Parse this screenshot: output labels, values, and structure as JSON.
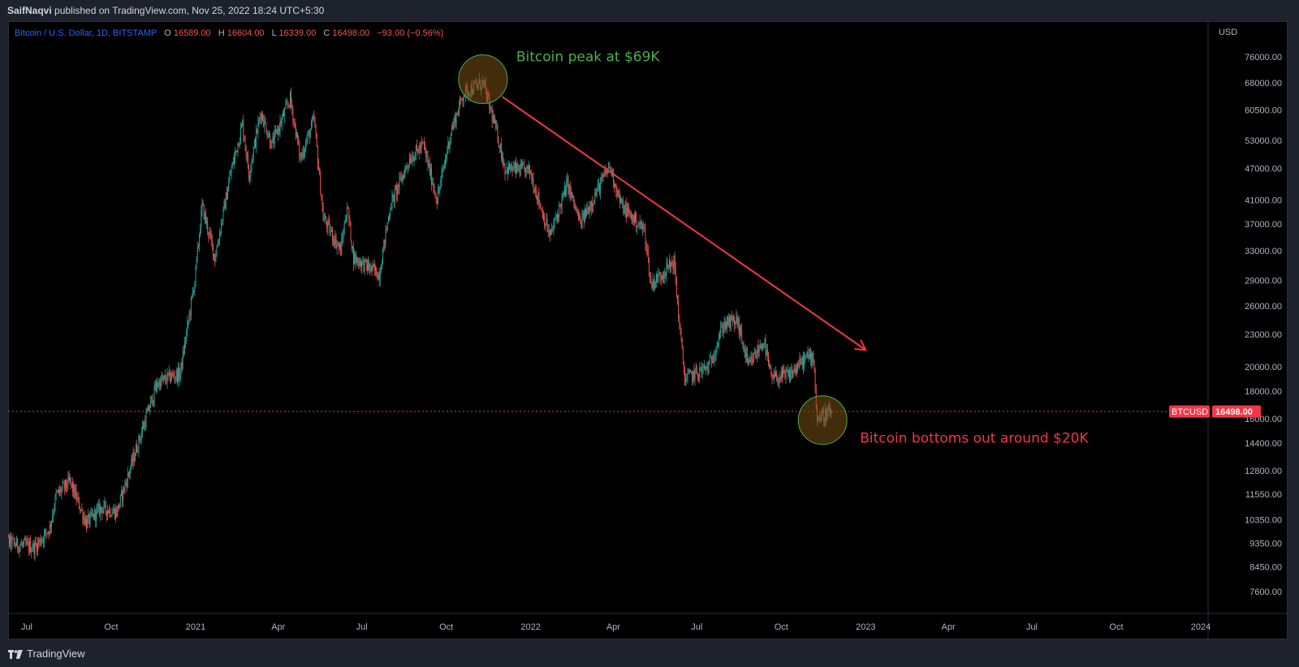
{
  "header": {
    "author": "SaifNaqvi",
    "published_text": "published on TradingView.com, Nov 25, 2022 18:24 UTC+5:30"
  },
  "footer": {
    "brand": "TradingView",
    "logo_icon": "tradingview-logo-icon"
  },
  "colors": {
    "background": "#000000",
    "up_candle": "#26a69a",
    "down_candle": "#ef5350",
    "legend_symbol": "#2962ff",
    "annotation_green": "#4caf50",
    "annotation_red": "#f23645",
    "price_line": "#f23645"
  },
  "chart_data": {
    "type": "candlestick",
    "symbol_title": "Bitcoin / U.S. Dollar, 1D, BITSTAMP",
    "ohlc_label": {
      "open_label": "O",
      "open": "16589.00",
      "high_label": "H",
      "high": "16604.00",
      "low_label": "L",
      "low": "16339.00",
      "close_label": "C",
      "close": "16498.00",
      "change": "−93.00 (−0.56%)"
    },
    "currency": "USD",
    "scale": "log",
    "y_ticks": [
      "76000.00",
      "68000.00",
      "60500.00",
      "53000.00",
      "47000.00",
      "41000.00",
      "37000.00",
      "33000.00",
      "29000.00",
      "26000.00",
      "23000.00",
      "20000.00",
      "18000.00",
      "16000.00",
      "14400.00",
      "12800.00",
      "11550.00",
      "10350.00",
      "9350.00",
      "8450.00",
      "7600.00"
    ],
    "y_tick_values": [
      76000,
      68000,
      60500,
      53000,
      47000,
      41000,
      37000,
      33000,
      29000,
      26000,
      23000,
      20000,
      18000,
      16000,
      14400,
      12800,
      11550,
      10350,
      9350,
      8450,
      7600
    ],
    "x_ticks": [
      "Jul",
      "Oct",
      "2021",
      "Apr",
      "Jul",
      "Oct",
      "2022",
      "Apr",
      "Jul",
      "Oct",
      "2023",
      "Apr",
      "Jul",
      "Oct",
      "2024"
    ],
    "x_tick_dates": [
      "2020-07-01",
      "2020-10-01",
      "2021-01-01",
      "2021-04-01",
      "2021-07-01",
      "2021-10-01",
      "2022-01-01",
      "2022-04-01",
      "2022-07-01",
      "2022-10-01",
      "2023-01-01",
      "2023-04-01",
      "2023-07-01",
      "2023-10-01",
      "2024-01-01"
    ],
    "x_range": [
      "2020-06-01",
      "2024-01-31"
    ],
    "last_price": {
      "symbol": "BTCUSD",
      "value": "16498.00",
      "price": 16498
    },
    "price_path": [
      {
        "date": "2020-06-01",
        "price": 9600
      },
      {
        "date": "2020-06-20",
        "price": 9300
      },
      {
        "date": "2020-07-10",
        "price": 9200
      },
      {
        "date": "2020-07-26",
        "price": 10000
      },
      {
        "date": "2020-08-02",
        "price": 11500
      },
      {
        "date": "2020-08-17",
        "price": 12200
      },
      {
        "date": "2020-09-04",
        "price": 10200
      },
      {
        "date": "2020-09-20",
        "price": 10900
      },
      {
        "date": "2020-10-07",
        "price": 10700
      },
      {
        "date": "2020-10-21",
        "price": 12800
      },
      {
        "date": "2020-11-05",
        "price": 15500
      },
      {
        "date": "2020-11-20",
        "price": 18600
      },
      {
        "date": "2020-12-05",
        "price": 19200
      },
      {
        "date": "2020-12-15",
        "price": 19400
      },
      {
        "date": "2020-12-31",
        "price": 29000
      },
      {
        "date": "2021-01-08",
        "price": 40000
      },
      {
        "date": "2021-01-22",
        "price": 32000
      },
      {
        "date": "2021-02-08",
        "price": 46000
      },
      {
        "date": "2021-02-21",
        "price": 57000
      },
      {
        "date": "2021-02-28",
        "price": 46000
      },
      {
        "date": "2021-03-13",
        "price": 60000
      },
      {
        "date": "2021-03-25",
        "price": 52000
      },
      {
        "date": "2021-04-14",
        "price": 63500
      },
      {
        "date": "2021-04-25",
        "price": 49000
      },
      {
        "date": "2021-05-10",
        "price": 58000
      },
      {
        "date": "2021-05-20",
        "price": 38000
      },
      {
        "date": "2021-06-08",
        "price": 33000
      },
      {
        "date": "2021-06-15",
        "price": 40000
      },
      {
        "date": "2021-06-22",
        "price": 32000
      },
      {
        "date": "2021-07-20",
        "price": 29800
      },
      {
        "date": "2021-08-01",
        "price": 40000
      },
      {
        "date": "2021-08-22",
        "price": 49000
      },
      {
        "date": "2021-09-06",
        "price": 52000
      },
      {
        "date": "2021-09-21",
        "price": 41000
      },
      {
        "date": "2021-10-06",
        "price": 55000
      },
      {
        "date": "2021-10-20",
        "price": 65000
      },
      {
        "date": "2021-11-10",
        "price": 68000
      },
      {
        "date": "2021-11-26",
        "price": 54000
      },
      {
        "date": "2021-12-04",
        "price": 47000
      },
      {
        "date": "2021-12-31",
        "price": 46500
      },
      {
        "date": "2022-01-22",
        "price": 35000
      },
      {
        "date": "2022-02-10",
        "price": 44000
      },
      {
        "date": "2022-02-24",
        "price": 37000
      },
      {
        "date": "2022-03-28",
        "price": 47500
      },
      {
        "date": "2022-04-10",
        "price": 40000
      },
      {
        "date": "2022-05-05",
        "price": 36000
      },
      {
        "date": "2022-05-12",
        "price": 28500
      },
      {
        "date": "2022-06-06",
        "price": 31500
      },
      {
        "date": "2022-06-14",
        "price": 22000
      },
      {
        "date": "2022-06-18",
        "price": 19000
      },
      {
        "date": "2022-07-14",
        "price": 20000
      },
      {
        "date": "2022-07-30",
        "price": 24000
      },
      {
        "date": "2022-08-14",
        "price": 24400
      },
      {
        "date": "2022-08-26",
        "price": 20000
      },
      {
        "date": "2022-09-12",
        "price": 22400
      },
      {
        "date": "2022-09-20",
        "price": 19000
      },
      {
        "date": "2022-10-10",
        "price": 19300
      },
      {
        "date": "2022-10-28",
        "price": 20800
      },
      {
        "date": "2022-11-05",
        "price": 21000
      },
      {
        "date": "2022-11-09",
        "price": 16000
      },
      {
        "date": "2022-11-25",
        "price": 16498
      }
    ],
    "annotations": [
      {
        "text": "Bitcoin peak at $69K",
        "color": "green",
        "circle_date": "2021-11-10",
        "circle_price": 69000
      },
      {
        "text": "Bitcoin bottoms out around $20K",
        "color": "red",
        "circle_date": "2022-11-15",
        "circle_price": 15900
      }
    ],
    "trend_arrow": {
      "from": {
        "date": "2021-12-01",
        "price": 64000
      },
      "to": {
        "date": "2023-01-01",
        "price": 21500
      }
    }
  }
}
